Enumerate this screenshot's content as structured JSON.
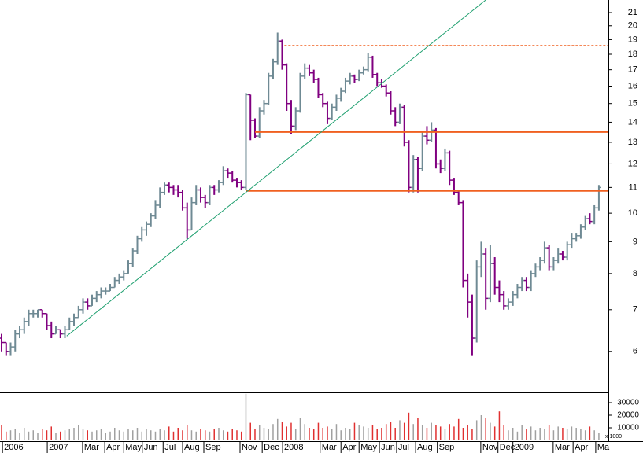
{
  "chart_data": {
    "type": "ohlc",
    "log_y": true,
    "up_color": "#6f8a94",
    "down_color": "#800080",
    "volume_up_color": "#a0a0a0",
    "volume_down_color": "#e03030",
    "xlim": [
      -0.35,
      134.1
    ],
    "ylim": [
      5.17,
      22.0
    ],
    "yticks": [
      6,
      7,
      8,
      9,
      10,
      11,
      12,
      13,
      14,
      15,
      16,
      17,
      18,
      19,
      20,
      21
    ],
    "xticks": [
      {
        "value": 0.2,
        "label": "2006"
      },
      {
        "value": 10.1,
        "label": "2007"
      },
      {
        "value": 17.9,
        "label": "Mar"
      },
      {
        "value": 22.8,
        "label": "Apr"
      },
      {
        "value": 27,
        "label": "May"
      },
      {
        "value": 31.1,
        "label": "Jun"
      },
      {
        "value": 35.7,
        "label": "Jul"
      },
      {
        "value": 40,
        "label": "Aug"
      },
      {
        "value": 44.7,
        "label": "Sep"
      },
      {
        "value": 52.7,
        "label": "Nov"
      },
      {
        "value": 57.6,
        "label": "Dec"
      },
      {
        "value": 62.1,
        "label": "2008"
      },
      {
        "value": 70.4,
        "label": "Mar"
      },
      {
        "value": 75,
        "label": "Apr"
      },
      {
        "value": 79,
        "label": "May"
      },
      {
        "value": 83.5,
        "label": "Jun"
      },
      {
        "value": 87.3,
        "label": "Jul"
      },
      {
        "value": 91.5,
        "label": "Aug"
      },
      {
        "value": 96.3,
        "label": "Sep"
      },
      {
        "value": 105.9,
        "label": "Nov"
      },
      {
        "value": 109.7,
        "label": "Dec"
      },
      {
        "value": 113,
        "label": "2009"
      },
      {
        "value": 121.9,
        "label": "Mar"
      },
      {
        "value": 126.3,
        "label": "Apr"
      },
      {
        "value": 131.3,
        "label": "Ma"
      }
    ],
    "open": [
      6.3,
      6.2,
      6.0,
      6.1,
      6.4,
      6.5,
      6.7,
      6.9,
      6.9,
      7.0,
      6.9,
      6.6,
      6.4,
      6.5,
      6.4,
      6.5,
      6.7,
      6.8,
      7.0,
      7.2,
      7.1,
      7.3,
      7.4,
      7.5,
      7.5,
      7.6,
      7.8,
      7.9,
      8.0,
      8.3,
      8.7,
      9.1,
      9.4,
      9.6,
      9.9,
      10.3,
      10.8,
      11.1,
      11.0,
      10.9,
      10.8,
      10.2,
      9.4,
      10.4,
      10.9,
      10.6,
      10.4,
      11.0,
      10.9,
      11.2,
      11.7,
      11.6,
      11.3,
      11.2,
      11.0,
      15.5,
      14.1,
      13.3,
      14.6,
      15.0,
      16.6,
      17.5,
      18.9,
      17.3,
      15.0,
      13.8,
      14.6,
      16.6,
      17.1,
      16.8,
      16.4,
      15.5,
      15.0,
      14.2,
      14.8,
      15.3,
      15.7,
      16.3,
      16.6,
      16.4,
      16.8,
      17.0,
      17.8,
      16.7,
      16.2,
      16.0,
      15.6,
      14.6,
      14.0,
      14.8,
      13.0,
      11.0,
      12.2,
      11.8,
      13.3,
      13.1,
      13.6,
      12.0,
      11.8,
      12.5,
      11.3,
      10.8,
      10.4,
      7.8,
      7.2,
      6.3,
      8.2,
      8.6,
      7.3,
      8.3,
      7.6,
      7.4,
      7.1,
      7.2,
      7.4,
      7.6,
      7.8,
      7.6,
      8.0,
      8.2,
      8.4,
      8.8,
      8.2,
      8.4,
      8.6,
      8.5,
      8.9,
      9.1,
      9.2,
      9.5,
      9.8,
      9.7,
      10.2
    ],
    "high": [
      6.4,
      6.2,
      6.2,
      6.5,
      6.6,
      6.8,
      7.0,
      7.0,
      7.0,
      7.0,
      6.9,
      6.7,
      6.6,
      6.5,
      6.6,
      6.8,
      6.9,
      7.1,
      7.3,
      7.3,
      7.4,
      7.5,
      7.6,
      7.6,
      7.7,
      7.9,
      8.0,
      8.1,
      8.4,
      8.8,
      9.2,
      9.5,
      9.7,
      10.0,
      10.5,
      11.0,
      11.2,
      11.2,
      11.1,
      11.1,
      10.9,
      10.4,
      10.6,
      11.1,
      11.0,
      10.7,
      11.1,
      11.1,
      11.3,
      11.9,
      11.8,
      11.7,
      11.4,
      11.3,
      15.6,
      15.5,
      14.2,
      14.8,
      15.2,
      16.8,
      17.7,
      19.5,
      19.0,
      17.4,
      15.2,
      14.8,
      16.8,
      17.4,
      17.3,
      17.0,
      16.5,
      15.6,
      15.1,
      15.0,
      15.5,
      15.9,
      16.5,
      16.8,
      16.7,
      17.0,
      17.2,
      18.1,
      17.9,
      16.8,
      16.4,
      16.1,
      15.7,
      14.8,
      15.0,
      14.9,
      13.1,
      12.4,
      12.3,
      13.5,
      13.8,
      14.0,
      13.7,
      12.2,
      12.7,
      12.6,
      11.4,
      10.9,
      10.5,
      8.0,
      7.4,
      8.4,
      9.0,
      8.8,
      8.9,
      8.5,
      7.8,
      7.5,
      7.3,
      7.5,
      7.7,
      7.9,
      7.9,
      8.1,
      8.3,
      8.5,
      9.0,
      8.9,
      8.5,
      8.8,
      8.7,
      9.0,
      9.3,
      9.3,
      9.6,
      9.9,
      10.0,
      10.3,
      11.1
    ],
    "low": [
      6.0,
      5.9,
      5.9,
      6.0,
      6.3,
      6.4,
      6.6,
      6.8,
      6.8,
      6.8,
      6.5,
      6.3,
      6.4,
      6.3,
      6.3,
      6.5,
      6.6,
      6.8,
      6.9,
      7.0,
      7.1,
      7.2,
      7.3,
      7.4,
      7.5,
      7.6,
      7.7,
      7.8,
      8.0,
      8.2,
      8.6,
      9.0,
      9.2,
      9.5,
      9.8,
      10.2,
      10.7,
      10.8,
      10.7,
      10.6,
      10.1,
      9.1,
      9.4,
      10.3,
      10.4,
      10.2,
      10.3,
      10.7,
      10.8,
      11.1,
      11.4,
      11.2,
      11.0,
      10.9,
      10.9,
      13.1,
      13.2,
      13.2,
      14.4,
      14.9,
      16.4,
      17.3,
      17.0,
      14.6,
      13.4,
      13.6,
      14.5,
      16.4,
      16.6,
      16.2,
      15.3,
      14.8,
      13.9,
      14.1,
      14.6,
      15.1,
      15.6,
      16.1,
      16.2,
      16.3,
      16.7,
      16.9,
      16.5,
      16.0,
      15.9,
      15.4,
      14.4,
      13.8,
      13.9,
      12.8,
      10.8,
      10.8,
      10.8,
      11.7,
      12.9,
      13.0,
      11.8,
      11.6,
      11.7,
      11.1,
      10.7,
      10.3,
      7.6,
      6.8,
      5.9,
      6.2,
      7.9,
      7.0,
      7.2,
      7.4,
      7.2,
      7.0,
      7.0,
      7.1,
      7.3,
      7.5,
      7.5,
      7.5,
      7.9,
      8.1,
      8.3,
      8.1,
      8.1,
      8.3,
      8.4,
      8.4,
      8.8,
      9.0,
      9.1,
      9.4,
      9.6,
      9.6,
      10.1
    ],
    "close": [
      6.2,
      6.0,
      6.1,
      6.4,
      6.5,
      6.7,
      6.9,
      6.9,
      7.0,
      6.9,
      6.6,
      6.4,
      6.5,
      6.4,
      6.5,
      6.7,
      6.8,
      7.0,
      7.2,
      7.1,
      7.3,
      7.4,
      7.5,
      7.5,
      7.6,
      7.8,
      7.9,
      8.0,
      8.3,
      8.7,
      9.1,
      9.4,
      9.6,
      9.9,
      10.3,
      10.8,
      11.1,
      11.0,
      10.9,
      10.8,
      10.2,
      9.4,
      10.4,
      10.9,
      10.6,
      10.4,
      11.0,
      10.9,
      11.2,
      11.7,
      11.6,
      11.3,
      11.2,
      11.0,
      15.5,
      14.1,
      13.3,
      14.6,
      15.0,
      16.6,
      17.5,
      18.9,
      17.3,
      15.0,
      13.8,
      14.6,
      16.6,
      17.1,
      16.8,
      16.4,
      15.5,
      15.0,
      14.2,
      14.8,
      15.3,
      15.7,
      16.3,
      16.6,
      16.4,
      16.8,
      17.0,
      17.8,
      16.7,
      16.2,
      16.0,
      15.6,
      14.6,
      14.0,
      14.8,
      13.0,
      11.0,
      12.2,
      11.8,
      13.3,
      13.1,
      13.6,
      12.0,
      11.8,
      12.5,
      11.3,
      10.8,
      10.4,
      7.8,
      7.2,
      6.3,
      8.2,
      8.6,
      7.3,
      8.3,
      7.6,
      7.4,
      7.1,
      7.2,
      7.4,
      7.6,
      7.8,
      7.6,
      8.0,
      8.2,
      8.4,
      8.8,
      8.2,
      8.4,
      8.6,
      8.5,
      8.9,
      9.1,
      9.2,
      9.5,
      9.8,
      9.7,
      10.2,
      11.0
    ],
    "volume": [
      12000,
      7000,
      8000,
      9000,
      6000,
      10000,
      7000,
      8000,
      6000,
      9000,
      8000,
      11000,
      6000,
      7000,
      8000,
      9000,
      10000,
      12000,
      9000,
      8000,
      7000,
      8000,
      9000,
      6000,
      7000,
      10000,
      8000,
      7000,
      9000,
      8000,
      10000,
      7000,
      9000,
      8000,
      7000,
      9000,
      8000,
      11000,
      7000,
      10000,
      8000,
      12000,
      8000,
      7000,
      9000,
      8000,
      7000,
      9000,
      10000,
      8000,
      7000,
      9000,
      8000,
      7000,
      37000,
      14000,
      9000,
      12000,
      10000,
      9000,
      13000,
      17000,
      15000,
      11000,
      14000,
      9000,
      18000,
      13000,
      10000,
      9000,
      14000,
      10000,
      11000,
      9000,
      13000,
      8000,
      10000,
      9000,
      14000,
      12000,
      11000,
      10000,
      12000,
      9000,
      10000,
      13000,
      15000,
      10000,
      16000,
      14000,
      22000,
      13000,
      18000,
      12000,
      10000,
      14000,
      12000,
      11000,
      9000,
      13000,
      11000,
      17000,
      10000,
      12000,
      9000,
      16000,
      20000,
      18000,
      14000,
      11000,
      23000,
      12000,
      8000,
      10000,
      7000,
      12000,
      9000,
      11000,
      8000,
      10000,
      9000,
      12000,
      8000,
      11000,
      10000,
      9000,
      11000,
      10000,
      9000,
      8000,
      11000,
      8000,
      6000
    ],
    "volume_ylim": [
      0,
      37500
    ],
    "volume_yticks": [
      10000,
      20000,
      30000
    ],
    "volume_unit_label": "x 1000",
    "hlines": [
      {
        "y": 13.5,
        "from": 56,
        "color": "#f06020",
        "style": "solid"
      },
      {
        "y": 10.86,
        "from": 54,
        "color": "#f06020",
        "style": "solid"
      },
      {
        "y": 18.6,
        "from": 62.5,
        "color": "#f06020",
        "style": "dashed"
      }
    ],
    "trendline": {
      "x": [
        14.4,
        107
      ],
      "y": [
        6.35,
        22.0
      ],
      "color": "#20a070"
    }
  }
}
